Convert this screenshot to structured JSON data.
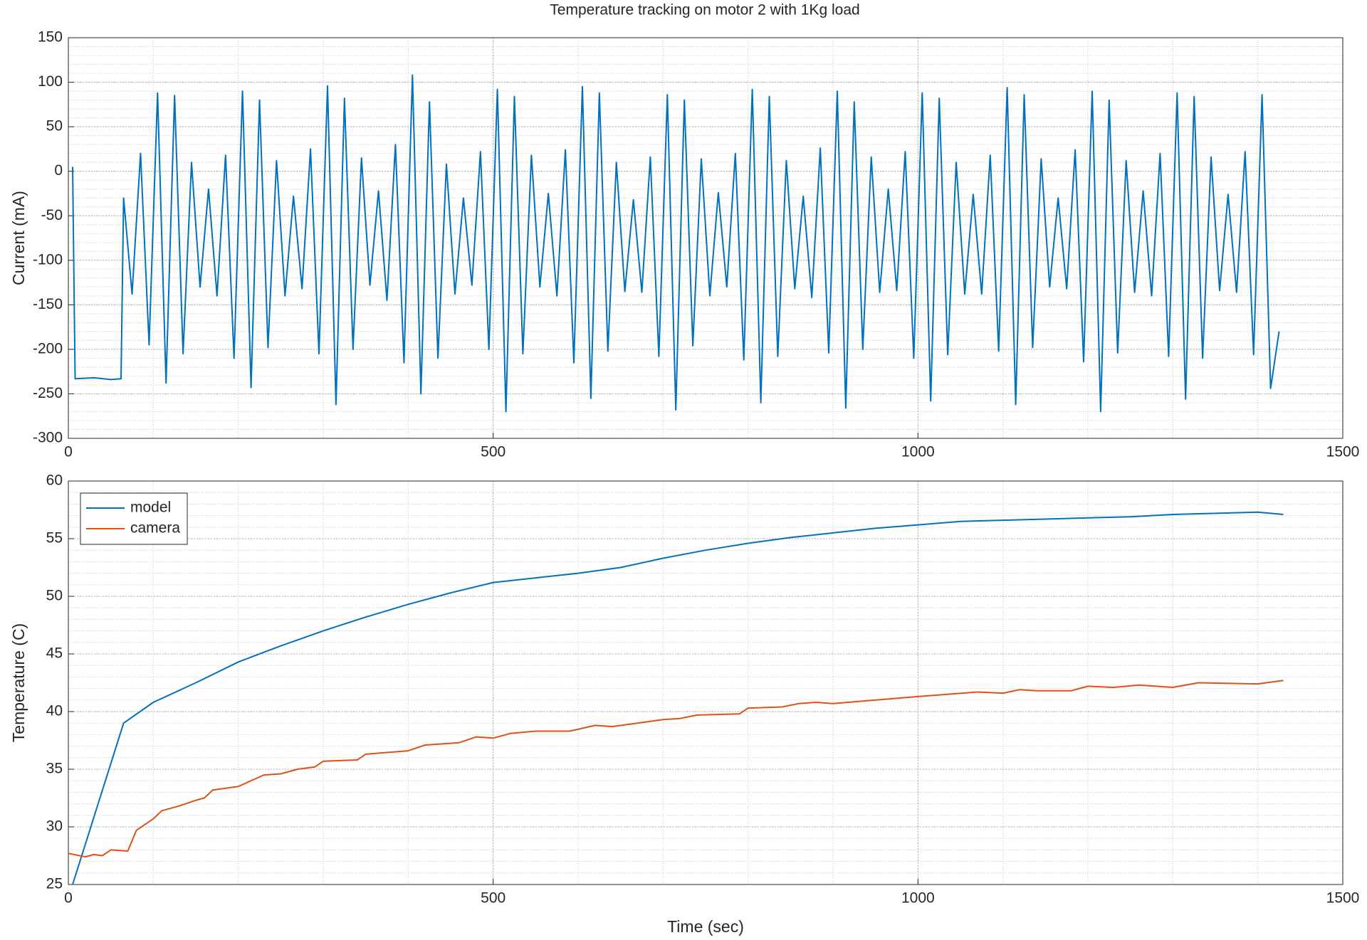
{
  "chart_data": [
    {
      "type": "line",
      "title": "Temperature tracking on motor 2 with 1Kg load",
      "ylabel": "Current (mA)",
      "xlim": [
        0,
        1500
      ],
      "xticks": [
        0,
        500,
        1000,
        1500
      ],
      "ylim": [
        -300,
        150
      ],
      "yticks": [
        -300,
        -250,
        -200,
        -150,
        -100,
        -50,
        0,
        50,
        100,
        150
      ],
      "grid": true,
      "minor_grid": true,
      "series": [
        {
          "color": "#0072bd",
          "x": [
            5,
            8,
            30,
            50,
            62,
            65,
            75,
            85,
            95,
            105,
            115,
            125,
            135,
            145,
            155,
            165,
            175,
            185,
            195,
            205,
            215,
            225,
            235,
            245,
            255,
            265,
            275,
            285,
            295,
            305,
            315,
            325,
            335,
            345,
            355,
            365,
            375,
            385,
            395,
            405,
            415,
            425,
            435,
            445,
            455,
            465,
            475,
            485,
            495,
            505,
            515,
            525,
            535,
            545,
            555,
            565,
            575,
            585,
            595,
            605,
            615,
            625,
            635,
            645,
            655,
            665,
            675,
            685,
            695,
            705,
            715,
            725,
            735,
            745,
            755,
            765,
            775,
            785,
            795,
            805,
            815,
            825,
            835,
            845,
            855,
            865,
            875,
            885,
            895,
            905,
            915,
            925,
            935,
            945,
            955,
            965,
            975,
            985,
            995,
            1005,
            1015,
            1025,
            1035,
            1045,
            1055,
            1065,
            1075,
            1085,
            1095,
            1105,
            1115,
            1125,
            1135,
            1145,
            1155,
            1165,
            1175,
            1185,
            1195,
            1205,
            1215,
            1225,
            1235,
            1245,
            1255,
            1265,
            1275,
            1285,
            1295,
            1305,
            1315,
            1325,
            1335,
            1345,
            1355,
            1365,
            1375,
            1385,
            1395,
            1405,
            1415,
            1425
          ],
          "values": [
            5,
            -233,
            -232,
            -234,
            -233,
            -30,
            -138,
            20,
            -195,
            88,
            -238,
            85,
            -205,
            10,
            -130,
            -20,
            -140,
            18,
            -210,
            90,
            -243,
            80,
            -198,
            12,
            -140,
            -28,
            -132,
            25,
            -205,
            96,
            -262,
            82,
            -200,
            15,
            -128,
            -22,
            -145,
            30,
            -215,
            108,
            -250,
            78,
            -210,
            8,
            -138,
            -30,
            -128,
            22,
            -200,
            92,
            -270,
            84,
            -205,
            18,
            -130,
            -25,
            -140,
            24,
            -215,
            95,
            -255,
            88,
            -202,
            10,
            -135,
            -32,
            -136,
            16,
            -208,
            86,
            -268,
            80,
            -196,
            14,
            -140,
            -24,
            -130,
            20,
            -212,
            92,
            -260,
            84,
            -208,
            12,
            -132,
            -28,
            -142,
            26,
            -204,
            90,
            -266,
            78,
            -200,
            16,
            -136,
            -20,
            -134,
            22,
            -210,
            88,
            -258,
            82,
            -206,
            10,
            -138,
            -26,
            -138,
            18,
            -202,
            94,
            -262,
            86,
            -198,
            14,
            -130,
            -30,
            -132,
            24,
            -214,
            90,
            -270,
            80,
            -204,
            12,
            -136,
            -22,
            -140,
            20,
            -208,
            88,
            -256,
            84,
            -210,
            16,
            -134,
            -26,
            -136,
            22,
            -206,
            86,
            -244,
            -180
          ]
        }
      ]
    },
    {
      "type": "line",
      "xlabel": "Time (sec)",
      "ylabel": "Temperature (C)",
      "xlim": [
        0,
        1500
      ],
      "xticks": [
        0,
        500,
        1000,
        1500
      ],
      "ylim": [
        25,
        60
      ],
      "yticks": [
        25,
        30,
        35,
        40,
        45,
        50,
        55,
        60
      ],
      "grid": true,
      "minor_grid": true,
      "legend": "northwest",
      "series": [
        {
          "name": "model",
          "color": "#0072bd",
          "x": [
            5,
            65,
            100,
            150,
            200,
            250,
            300,
            350,
            400,
            450,
            500,
            550,
            600,
            650,
            700,
            750,
            800,
            850,
            900,
            950,
            1000,
            1050,
            1100,
            1150,
            1200,
            1250,
            1300,
            1350,
            1400,
            1430
          ],
          "values": [
            25,
            39,
            40.8,
            42.5,
            44.3,
            45.7,
            47,
            48.2,
            49.3,
            50.3,
            51.2,
            51.6,
            52,
            52.5,
            53.3,
            54,
            54.6,
            55.1,
            55.5,
            55.9,
            56.2,
            56.5,
            56.6,
            56.7,
            56.8,
            56.9,
            57.1,
            57.2,
            57.3,
            57.1
          ]
        },
        {
          "name": "camera",
          "color": "#d95319",
          "x": [
            0,
            20,
            30,
            40,
            50,
            70,
            80,
            100,
            110,
            130,
            150,
            160,
            170,
            200,
            230,
            250,
            270,
            290,
            300,
            340,
            350,
            400,
            420,
            460,
            480,
            500,
            520,
            550,
            590,
            620,
            640,
            700,
            720,
            740,
            790,
            800,
            840,
            860,
            880,
            900,
            1000,
            1070,
            1100,
            1120,
            1140,
            1180,
            1200,
            1230,
            1260,
            1300,
            1330,
            1400,
            1420,
            1430
          ],
          "values": [
            27.7,
            27.4,
            27.6,
            27.5,
            28,
            27.9,
            29.7,
            30.7,
            31.4,
            31.8,
            32.3,
            32.5,
            33.2,
            33.5,
            34.5,
            34.6,
            35,
            35.2,
            35.7,
            35.8,
            36.3,
            36.6,
            37.1,
            37.3,
            37.8,
            37.7,
            38.1,
            38.3,
            38.3,
            38.8,
            38.7,
            39.3,
            39.4,
            39.7,
            39.8,
            40.3,
            40.4,
            40.7,
            40.8,
            40.7,
            41.3,
            41.7,
            41.6,
            41.9,
            41.8,
            41.8,
            42.2,
            42.1,
            42.3,
            42.1,
            42.5,
            42.4,
            42.6,
            42.7
          ]
        }
      ]
    }
  ]
}
